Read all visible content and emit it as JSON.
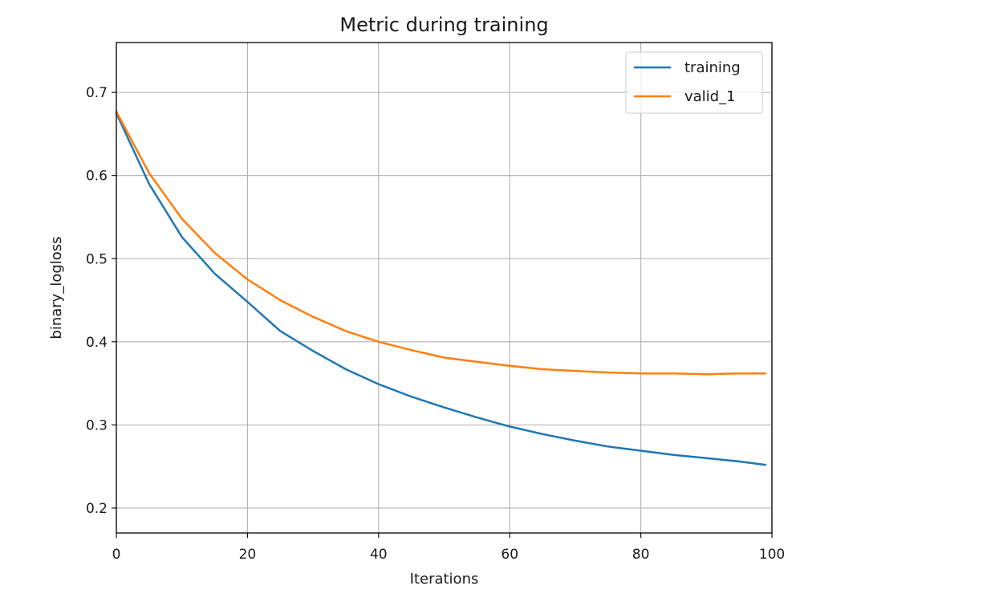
{
  "chart_data": {
    "type": "line",
    "title": "Metric during training",
    "xlabel": "Iterations",
    "ylabel": "binary_logloss",
    "xlim": [
      0,
      100
    ],
    "ylim": [
      0.17,
      0.76
    ],
    "xticks": [
      0,
      20,
      40,
      60,
      80,
      100
    ],
    "yticks": [
      0.2,
      0.3,
      0.4,
      0.5,
      0.6,
      0.7
    ],
    "xtick_labels": [
      "0",
      "20",
      "40",
      "60",
      "80",
      "100"
    ],
    "ytick_labels": [
      "0.2",
      "0.3",
      "0.4",
      "0.5",
      "0.6",
      "0.7"
    ],
    "grid": true,
    "legend": "top-right",
    "x": [
      0,
      5,
      10,
      15,
      20,
      25,
      30,
      35,
      40,
      45,
      50,
      55,
      60,
      65,
      70,
      75,
      80,
      85,
      90,
      95,
      99
    ],
    "series": [
      {
        "name": "training",
        "color": "#1f77b4",
        "values": [
          0.675,
          0.59,
          0.526,
          0.482,
          0.448,
          0.413,
          0.389,
          0.367,
          0.349,
          0.334,
          0.321,
          0.309,
          0.298,
          0.289,
          0.281,
          0.274,
          0.269,
          0.264,
          0.26,
          0.256,
          0.252
        ]
      },
      {
        "name": "valid_1",
        "color": "#ff7f0e",
        "values": [
          0.677,
          0.603,
          0.548,
          0.507,
          0.475,
          0.45,
          0.43,
          0.413,
          0.4,
          0.39,
          0.381,
          0.376,
          0.371,
          0.367,
          0.365,
          0.363,
          0.362,
          0.362,
          0.361,
          0.362,
          0.362
        ]
      }
    ]
  }
}
